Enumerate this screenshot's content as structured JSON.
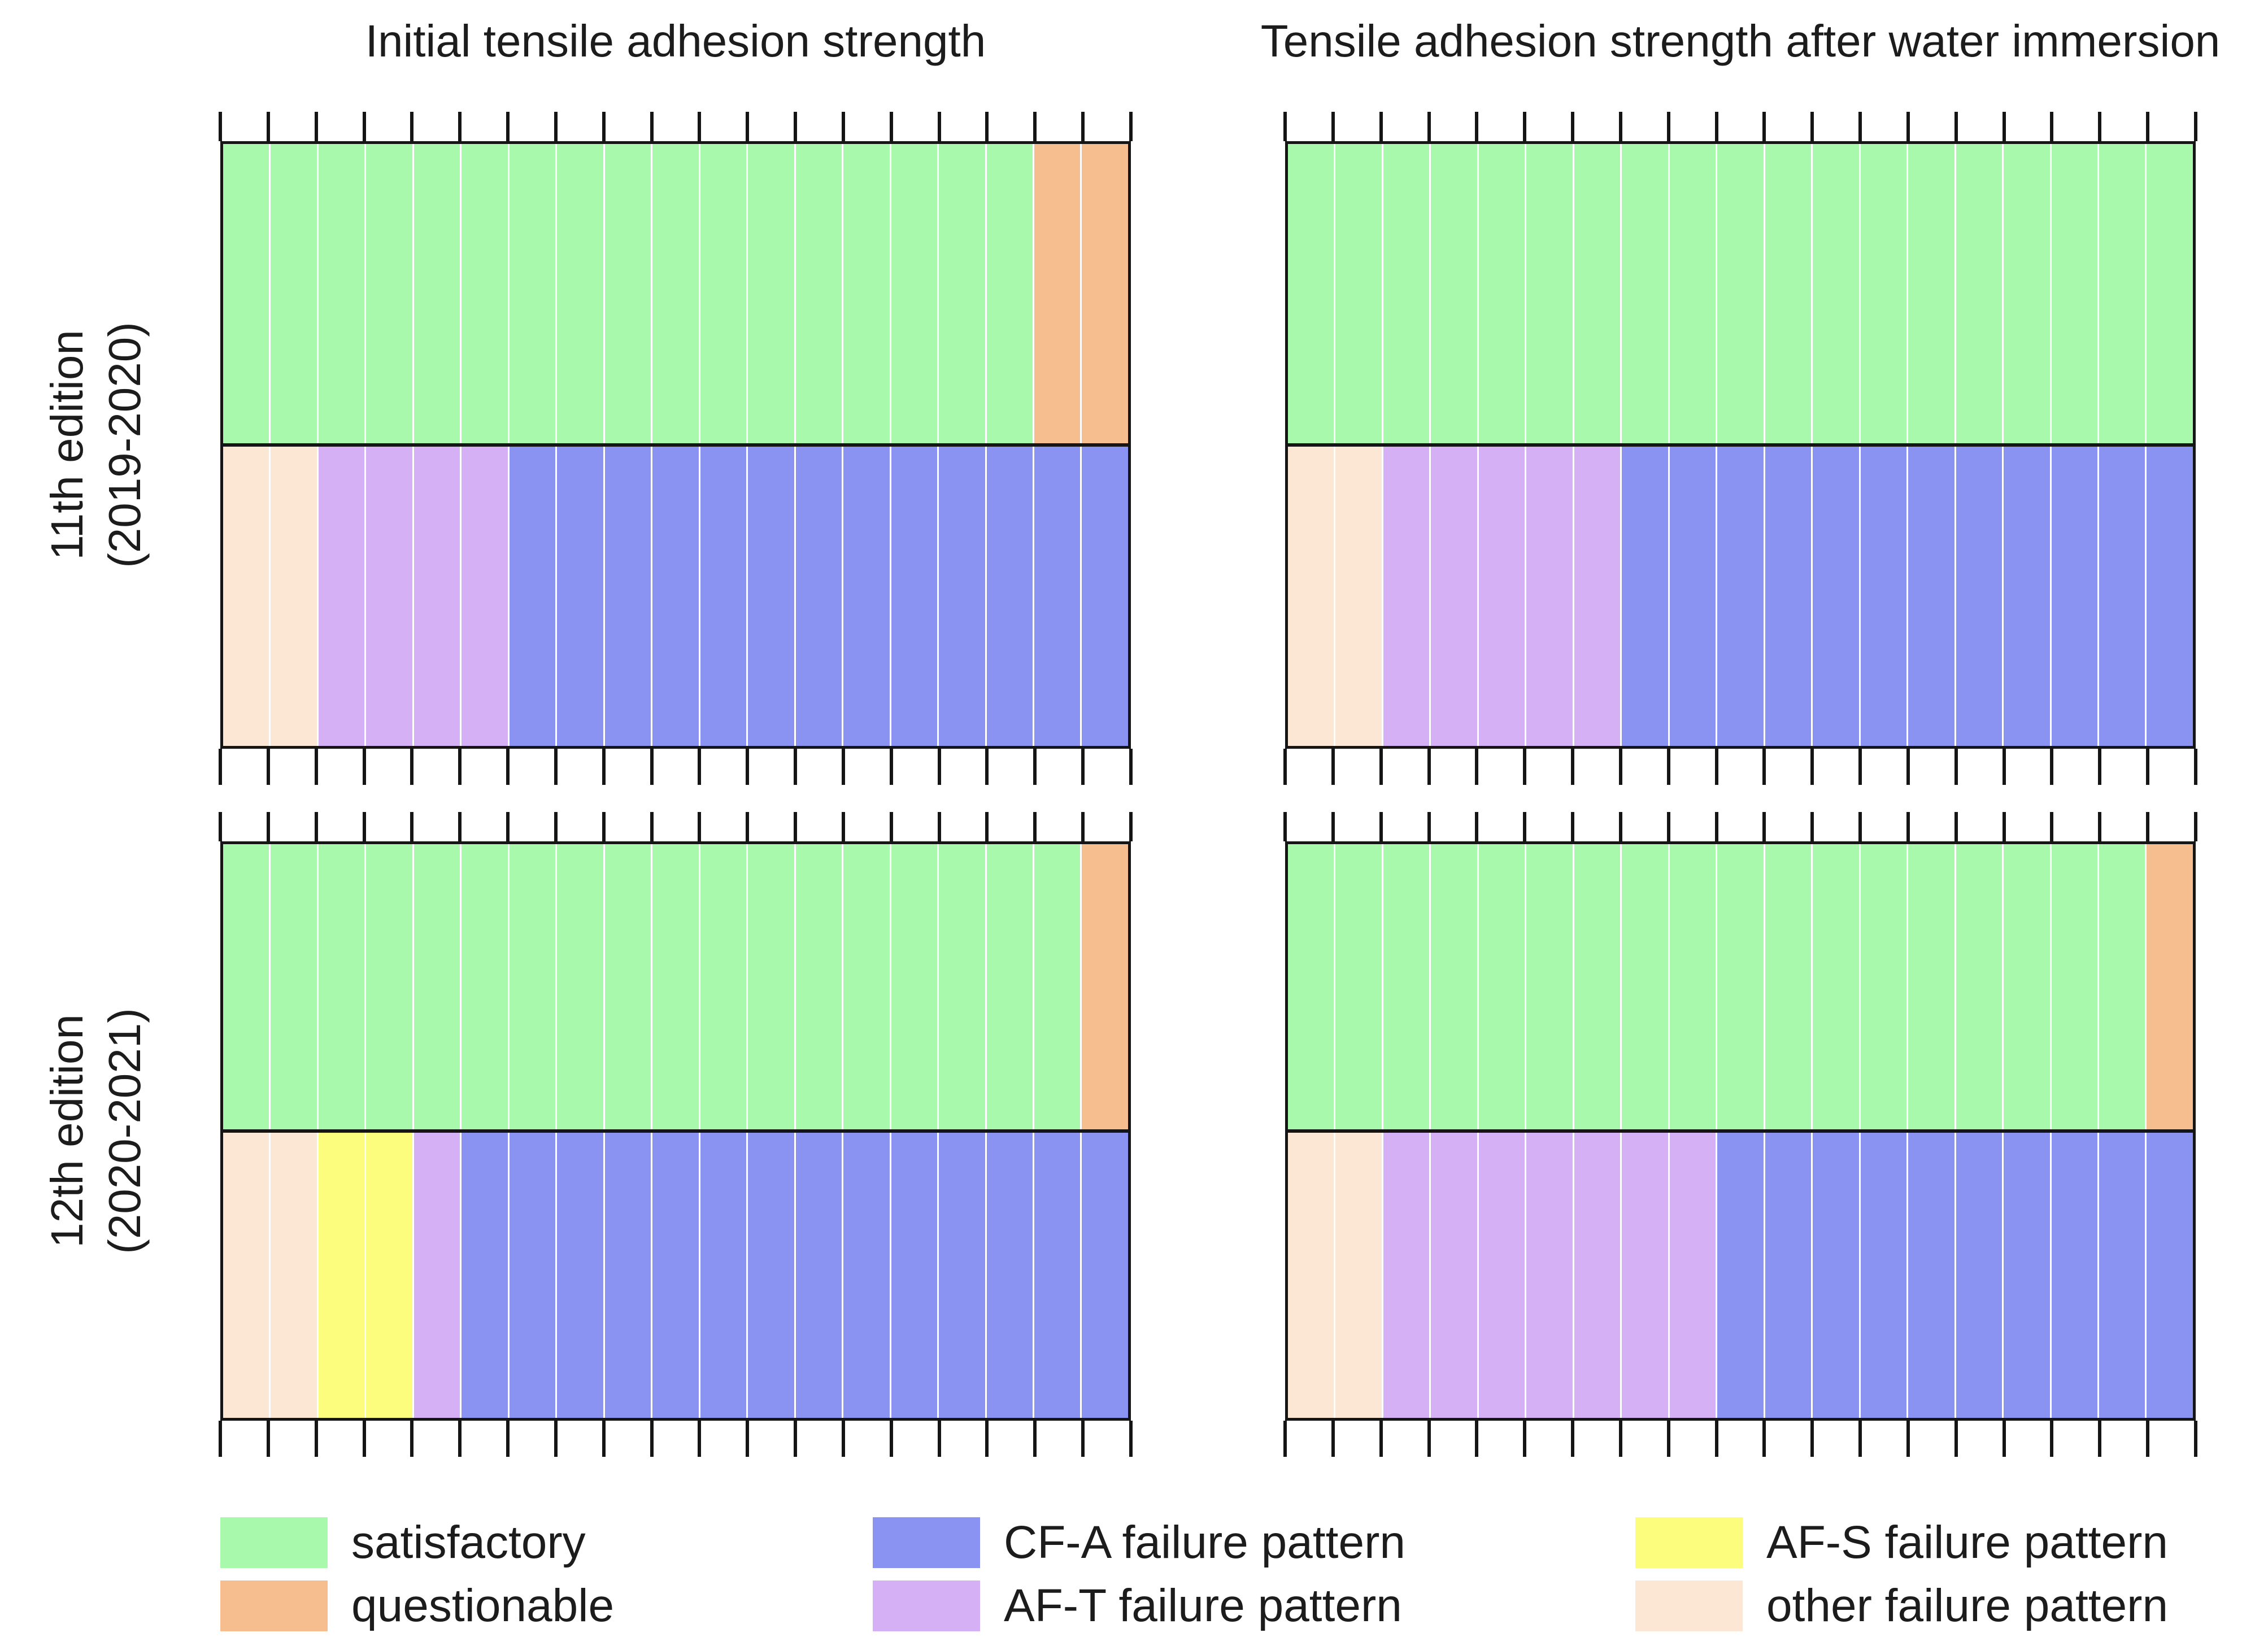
{
  "titles": {
    "left": "Initial tensile adhesion strength",
    "right": "Tensile adhesion strength after water immersion"
  },
  "row_labels": [
    {
      "line1": "11th edition",
      "line2": "(2019-2020)"
    },
    {
      "line1": "12th edition",
      "line2": "(2020-2021)"
    }
  ],
  "colors": {
    "satisfactory": "#A9F9AC",
    "questionable": "#F6BD8F",
    "cfa": "#8A93F2",
    "aft": "#D5B0F5",
    "afs": "#FCFC7D",
    "other": "#FBE7D4",
    "axis": "#151515",
    "separator": "#FFFFFF"
  },
  "samples_per_bar": 19,
  "ticks_per_axis": 20,
  "legend": {
    "columns": [
      [
        {
          "key": "satisfactory",
          "label": "satisfactory"
        },
        {
          "key": "questionable",
          "label": "questionable"
        }
      ],
      [
        {
          "key": "cfa",
          "label": "CF-A failure pattern"
        },
        {
          "key": "aft",
          "label": "AF-T failure pattern"
        }
      ],
      [
        {
          "key": "afs",
          "label": "AF-S failure pattern"
        },
        {
          "key": "other",
          "label": "other failure pattern"
        }
      ]
    ]
  },
  "chart_data": {
    "type": "bar",
    "subtype": "stacked-sample-count-strips",
    "samples_per_bar": 19,
    "rows": [
      "11th edition (2019-2020)",
      "12th edition (2020-2021)"
    ],
    "columns": [
      "Initial tensile adhesion strength",
      "Tensile adhesion strength after water immersion"
    ],
    "legend_position": "bottom",
    "panels": [
      {
        "row": 0,
        "col": 0,
        "assessment": [
          {
            "category": "satisfactory",
            "count": 17
          },
          {
            "category": "questionable",
            "count": 2
          }
        ],
        "failure_pattern": [
          {
            "category": "other",
            "count": 2
          },
          {
            "category": "AF-T",
            "count": 4
          },
          {
            "category": "CF-A",
            "count": 13
          }
        ]
      },
      {
        "row": 0,
        "col": 1,
        "assessment": [
          {
            "category": "satisfactory",
            "count": 19
          }
        ],
        "failure_pattern": [
          {
            "category": "other",
            "count": 2
          },
          {
            "category": "AF-T",
            "count": 5
          },
          {
            "category": "CF-A",
            "count": 12
          }
        ]
      },
      {
        "row": 1,
        "col": 0,
        "assessment": [
          {
            "category": "satisfactory",
            "count": 18
          },
          {
            "category": "questionable",
            "count": 1
          }
        ],
        "failure_pattern": [
          {
            "category": "other",
            "count": 2
          },
          {
            "category": "AF-S",
            "count": 2
          },
          {
            "category": "AF-T",
            "count": 1
          },
          {
            "category": "CF-A",
            "count": 14
          }
        ]
      },
      {
        "row": 1,
        "col": 1,
        "assessment": [
          {
            "category": "satisfactory",
            "count": 18
          },
          {
            "category": "questionable",
            "count": 1
          }
        ],
        "failure_pattern": [
          {
            "category": "other",
            "count": 2
          },
          {
            "category": "AF-T",
            "count": 7
          },
          {
            "category": "CF-A",
            "count": 10
          }
        ]
      }
    ]
  }
}
